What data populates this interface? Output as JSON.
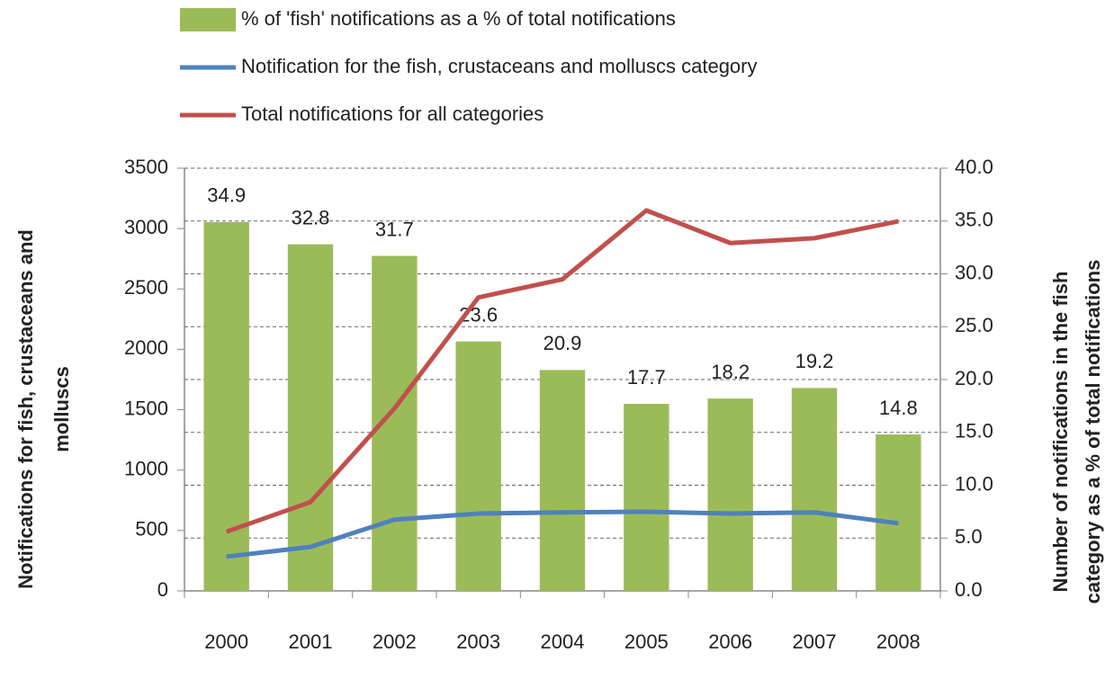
{
  "chart_data": {
    "type": "bar-line",
    "categories": [
      "2000",
      "2001",
      "2002",
      "2003",
      "2004",
      "2005",
      "2006",
      "2007",
      "2008"
    ],
    "series": [
      {
        "name": "% of 'fish' notifications as a % of total  notifications",
        "type": "bar",
        "axis": "y2",
        "color": "#9bbb59",
        "values": [
          34.9,
          32.8,
          31.7,
          23.6,
          20.9,
          17.7,
          18.2,
          19.2,
          14.8
        ]
      },
      {
        "name": "Notification for the fish, crustaceans and molluscs category",
        "type": "line",
        "axis": "y",
        "color": "#4f81bd",
        "values": [
          284,
          364,
          590,
          640,
          650,
          655,
          640,
          650,
          560
        ]
      },
      {
        "name": "Total notifications  for all categories",
        "type": "line",
        "axis": "y",
        "color": "#c0504d",
        "values": [
          490,
          735,
          1510,
          2430,
          2580,
          3150,
          2880,
          2920,
          3060
        ]
      }
    ],
    "ylabel": [
      "Notifications for fish, crustaceans and",
      "molluscs"
    ],
    "y2label": [
      "Number of notifications in the fish",
      "category as a % of total notifications"
    ],
    "ylim": [
      0,
      3500
    ],
    "yticks": [
      0,
      500,
      1000,
      1500,
      2000,
      2500,
      3000,
      3500
    ],
    "y2lim": [
      0,
      40
    ],
    "y2ticks": [
      {
        "value": 0,
        "label": "0.0"
      },
      {
        "value": 5,
        "label": "5.0"
      },
      {
        "value": 10,
        "label": "10.0"
      },
      {
        "value": 15,
        "label": "15.0"
      },
      {
        "value": 20,
        "label": "20.0"
      },
      {
        "value": 25,
        "label": "25.0"
      },
      {
        "value": 30,
        "label": "30.0"
      },
      {
        "value": 35,
        "label": "35.0"
      },
      {
        "value": 40,
        "label": "40.0"
      }
    ],
    "grid": true,
    "legend": "top"
  }
}
